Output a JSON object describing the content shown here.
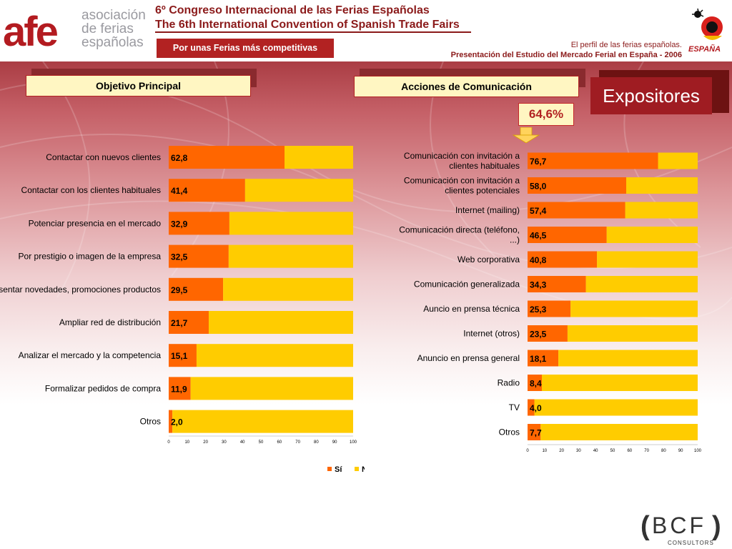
{
  "header": {
    "org_logo_letters": "afe",
    "org_name_lines": [
      "asociación",
      "de ferias",
      "españolas"
    ],
    "title_es": "6º Congreso Internacional de las Ferias Españolas",
    "title_en": "The 6th International Convention of Spanish Trade Fairs",
    "tagline": "Por unas Ferias más competitivas",
    "subtitle_1": "El perfil de las ferias españolas.",
    "subtitle_2": "Presentación del Estudio del Mercado Ferial en España - 2006",
    "spain_logo_text": "ESPAÑA"
  },
  "section_label": "Expositores",
  "highlight_value": "64,6%",
  "colors": {
    "si": "#ff6600",
    "no": "#ffcc00",
    "accent": "#b22222",
    "title_bg": "#fff6c2"
  },
  "legend": [
    {
      "label": "Sí",
      "color": "#ff6600"
    },
    {
      "label": "No",
      "color": "#ffcc00"
    }
  ],
  "chart_data": [
    {
      "type": "bar",
      "orientation": "horizontal",
      "stacked": true,
      "title": "Objetivo Principal",
      "categories": [
        "Contactar con nuevos clientes",
        "Contactar con los clientes habituales",
        "Potenciar presencia en el mercado",
        "Por prestigio o imagen de la empresa",
        "Presentar novedades, promociones productos",
        "Ampliar red de distribución",
        "Analizar el mercado y la competencia",
        "Formalizar pedidos de compra",
        "Otros"
      ],
      "value_labels": [
        "62,8",
        "41,4",
        "32,9",
        "32,5",
        "29,5",
        "21,7",
        "15,1",
        "11,9",
        "2,0"
      ],
      "series": [
        {
          "name": "Sí",
          "values": [
            62.8,
            41.4,
            32.9,
            32.5,
            29.5,
            21.7,
            15.1,
            11.9,
            2.0
          ]
        },
        {
          "name": "No",
          "values": [
            37.2,
            58.6,
            67.1,
            67.5,
            70.5,
            78.3,
            84.9,
            88.1,
            98.0
          ]
        }
      ],
      "xlim": [
        0,
        100
      ],
      "xticks": [
        0,
        10,
        20,
        30,
        40,
        50,
        60,
        70,
        80,
        90,
        100
      ],
      "legend": "bottom"
    },
    {
      "type": "bar",
      "orientation": "horizontal",
      "stacked": true,
      "title": "Acciones de Comunicación",
      "categories": [
        "Comunicación con invitación a clientes habituales",
        "Comunicación con invitación a clientes potenciales",
        "Internet (mailing)",
        "Comunicación directa (teléfono, ...)",
        "Web corporativa",
        "Comunicación generalizada",
        "Auncio en prensa técnica",
        "Internet (otros)",
        "Anuncio en prensa general",
        "Radio",
        "TV",
        "Otros"
      ],
      "value_labels": [
        "76,7",
        "58,0",
        "57,4",
        "46,5",
        "40,8",
        "34,3",
        "25,3",
        "23,5",
        "18,1",
        "8,4",
        "4,0",
        "7,7"
      ],
      "series": [
        {
          "name": "Sí",
          "values": [
            76.7,
            58.0,
            57.4,
            46.5,
            40.8,
            34.3,
            25.3,
            23.5,
            18.1,
            8.4,
            4.0,
            7.7
          ]
        },
        {
          "name": "No",
          "values": [
            23.3,
            42.0,
            42.6,
            53.5,
            59.2,
            65.7,
            74.7,
            76.5,
            81.9,
            91.6,
            96.0,
            92.3
          ]
        }
      ],
      "xlim": [
        0,
        100
      ],
      "xticks": [
        0,
        10,
        20,
        30,
        40,
        50,
        60,
        70,
        80,
        90,
        100
      ]
    }
  ],
  "footer": {
    "consultancy_logo": "BCF",
    "consultancy_sub": "CONSULTORS"
  }
}
